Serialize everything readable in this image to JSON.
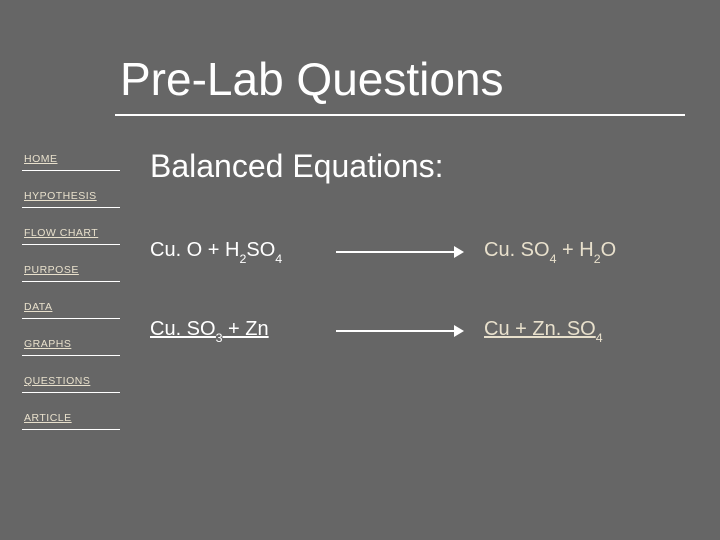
{
  "title": "Pre-Lab Questions",
  "nav": {
    "items": [
      "HOME",
      "HYPOTHESIS",
      "FLOW CHART",
      "PURPOSE",
      "DATA",
      "GRAPHS",
      "QUESTIONS",
      "ARTICLE"
    ]
  },
  "content": {
    "heading": "Balanced Equations:",
    "equations": [
      {
        "left_parts": [
          "Cu. O + H",
          "2",
          "SO",
          "4"
        ],
        "right_parts": [
          "Cu. SO",
          "4",
          " + H",
          "2",
          "O"
        ]
      },
      {
        "left_parts": [
          "Cu. SO",
          "3",
          " + Zn"
        ],
        "right_parts": [
          "Cu + Zn. SO",
          "4"
        ]
      }
    ]
  },
  "colors": {
    "background": "#666666",
    "text_primary": "#ffffff",
    "text_accent": "#e8e0cc"
  }
}
